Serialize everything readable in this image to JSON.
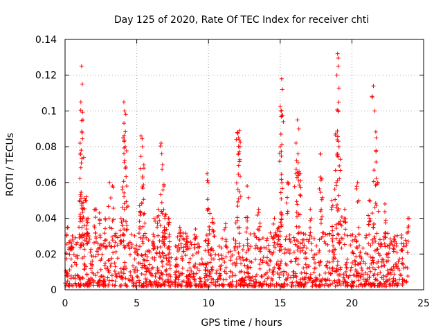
{
  "chart_data": {
    "type": "scatter",
    "title": "Day 125 of 2020, Rate Of TEC Index for receiver chti",
    "xlabel": "GPS time / hours",
    "ylabel": "ROTI / TECUs",
    "xlim": [
      0,
      25
    ],
    "ylim": [
      0,
      0.14
    ],
    "xticks": [
      0,
      5,
      10,
      15,
      20,
      25
    ],
    "xtick_labels": [
      "0",
      "5",
      "10",
      "15",
      "20",
      "25"
    ],
    "yticks": [
      0,
      0.02,
      0.04,
      0.06,
      0.08,
      0.1,
      0.12,
      0.14
    ],
    "ytick_labels": [
      "0",
      "0.02",
      "0.04",
      "0.06",
      "0.08",
      "0.1",
      "0.12",
      "0.14"
    ],
    "grid": true,
    "marker": "+",
    "color": "#ff0000",
    "series": [
      {
        "name": "ROTI",
        "baseline_range": [
          0.002,
          0.032
        ],
        "x": [
          0.2,
          0.4,
          1.0,
          1.05,
          1.1,
          1.15,
          1.2,
          1.25,
          1.3,
          1.5,
          1.6,
          2.1,
          2.4,
          2.8,
          3.1,
          3.3,
          3.9,
          4.05,
          4.1,
          4.15,
          4.2,
          4.3,
          5.2,
          5.3,
          5.4,
          5.5,
          6.2,
          6.5,
          6.7,
          6.8,
          6.9,
          7.0,
          7.2,
          8.0,
          8.5,
          9.1,
          9.9,
          10.0,
          10.3,
          11.2,
          12.0,
          12.1,
          12.15,
          12.2,
          12.7,
          13.5,
          14.6,
          14.9,
          15.0,
          15.05,
          15.1,
          15.15,
          15.5,
          16.1,
          16.2,
          16.3,
          16.4,
          17.1,
          17.8,
          17.9,
          18.6,
          18.9,
          18.95,
          19.0,
          19.05,
          19.1,
          19.2,
          19.5,
          20.4,
          21.2,
          21.5,
          21.6,
          21.7,
          21.8,
          22.3,
          23.0,
          23.5,
          23.9
        ],
        "y": [
          0.035,
          0.024,
          0.05,
          0.082,
          0.105,
          0.125,
          0.115,
          0.095,
          0.074,
          0.052,
          0.04,
          0.045,
          0.043,
          0.04,
          0.06,
          0.058,
          0.04,
          0.085,
          0.105,
          0.1,
          0.08,
          0.058,
          0.047,
          0.086,
          0.08,
          0.068,
          0.04,
          0.045,
          0.082,
          0.07,
          0.058,
          0.042,
          0.04,
          0.035,
          0.03,
          0.034,
          0.065,
          0.045,
          0.04,
          0.037,
          0.088,
          0.085,
          0.089,
          0.08,
          0.058,
          0.045,
          0.04,
          0.035,
          0.08,
          0.087,
          0.118,
          0.112,
          0.06,
          0.065,
          0.095,
          0.09,
          0.065,
          0.045,
          0.076,
          0.062,
          0.05,
          0.06,
          0.12,
          0.132,
          0.125,
          0.08,
          0.073,
          0.045,
          0.06,
          0.05,
          0.114,
          0.1,
          0.085,
          0.06,
          0.048,
          0.03,
          0.022,
          0.04
        ]
      }
    ]
  }
}
